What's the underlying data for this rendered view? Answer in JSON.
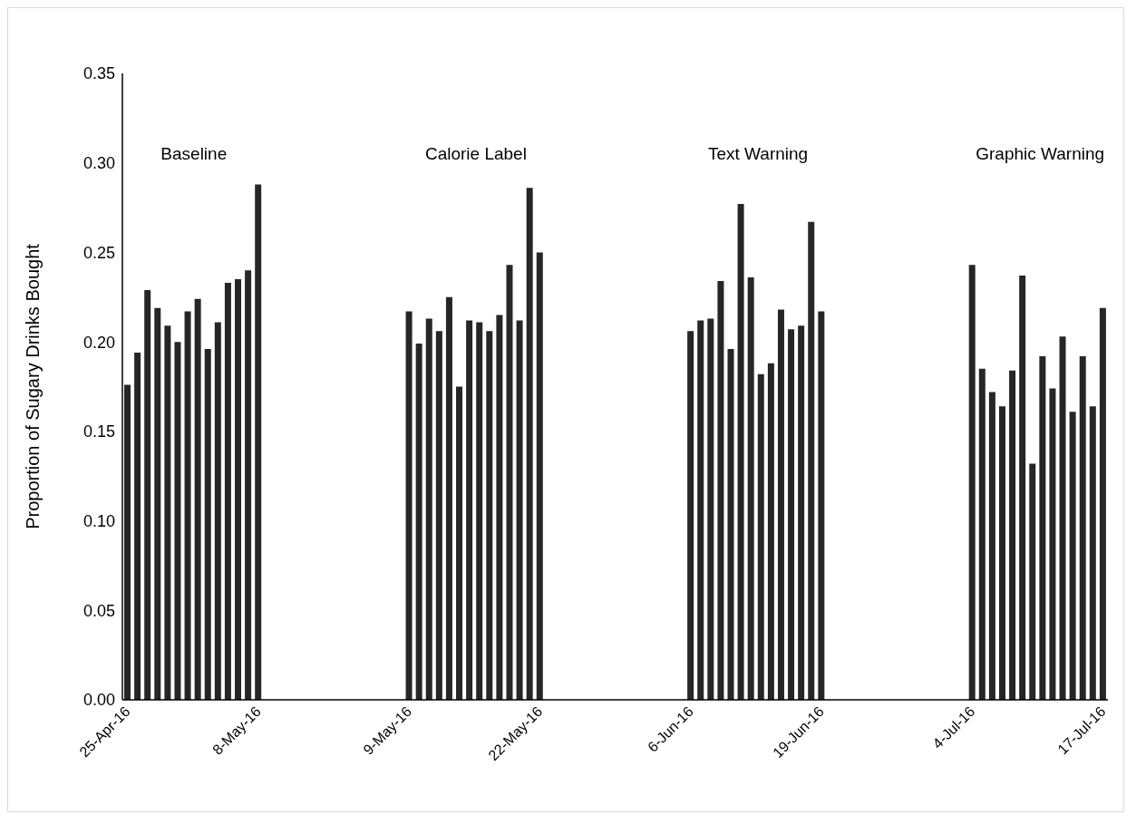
{
  "chart_data": {
    "type": "bar",
    "ylabel": "Proportion of Sugary Drinks Bought",
    "categories": [
      "25-Apr-16",
      null,
      null,
      null,
      null,
      null,
      null,
      null,
      null,
      null,
      null,
      null,
      null,
      "8-May-16",
      null,
      null,
      null,
      null,
      null,
      null,
      null,
      null,
      null,
      null,
      null,
      null,
      null,
      null,
      "9-May-16",
      null,
      null,
      null,
      null,
      null,
      null,
      null,
      null,
      null,
      null,
      null,
      null,
      "22-May-16",
      null,
      null,
      null,
      null,
      null,
      null,
      null,
      null,
      null,
      null,
      null,
      null,
      null,
      null,
      "6-Jun-16",
      null,
      null,
      null,
      null,
      null,
      null,
      null,
      null,
      null,
      null,
      null,
      null,
      "19-Jun-16",
      null,
      null,
      null,
      null,
      null,
      null,
      null,
      null,
      null,
      null,
      null,
      null,
      null,
      null,
      "4-Jul-16",
      null,
      null,
      null,
      null,
      null,
      null,
      null,
      null,
      null,
      null,
      null,
      null,
      "17-Jul-16"
    ],
    "values": [
      0.176,
      0.194,
      0.229,
      0.219,
      0.209,
      0.2,
      0.217,
      0.224,
      0.196,
      0.211,
      0.233,
      0.235,
      0.24,
      0.288,
      null,
      null,
      null,
      null,
      null,
      null,
      null,
      null,
      null,
      null,
      null,
      null,
      null,
      null,
      0.217,
      0.199,
      0.213,
      0.206,
      0.225,
      0.175,
      0.212,
      0.211,
      0.206,
      0.215,
      0.243,
      0.212,
      0.286,
      0.25,
      null,
      null,
      null,
      null,
      null,
      null,
      null,
      null,
      null,
      null,
      null,
      null,
      null,
      null,
      0.206,
      0.212,
      0.213,
      0.234,
      0.196,
      0.277,
      0.236,
      0.182,
      0.188,
      0.218,
      0.207,
      0.209,
      0.267,
      0.217,
      null,
      null,
      null,
      null,
      null,
      null,
      null,
      null,
      null,
      null,
      null,
      null,
      null,
      null,
      0.243,
      0.185,
      0.172,
      0.164,
      0.184,
      0.237,
      0.132,
      0.192,
      0.174,
      0.203,
      0.161,
      0.192,
      0.164,
      0.219
    ],
    "color": "#262626",
    "ylim": [
      0,
      0.35
    ],
    "yticks": [
      {
        "value": 0,
        "label": "0.00"
      },
      0.05,
      {
        "value": 0.1,
        "label": "0.10"
      },
      0.15,
      {
        "value": 0.2,
        "label": "0.20"
      },
      0.25,
      {
        "value": 0.3,
        "label": "0.30"
      },
      0.35
    ],
    "grid": false,
    "legend": false,
    "annotations": [
      "Baseline",
      "Calorie Label",
      "Text Warning",
      "Graphic Warning"
    ]
  }
}
